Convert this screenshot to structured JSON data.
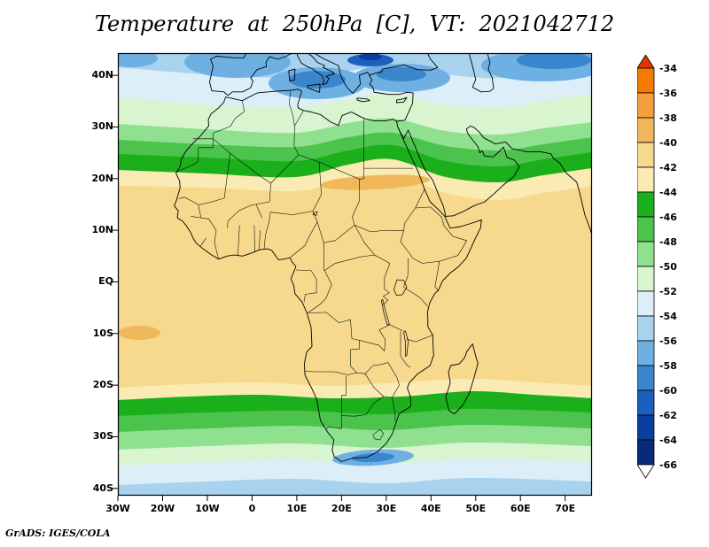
{
  "title": "Temperature at 250hPa [C], VT: 2021042712",
  "attribution": "GrADS: IGES/COLA",
  "chart_data": {
    "type": "heatmap",
    "subtype": "filled-contour-weather-map",
    "title": "Temperature at 250hPa [C], VT: 2021042712",
    "variable": "Temperature",
    "pressure_level": "250hPa",
    "units": "C",
    "valid_time": "2021042712",
    "region": "Africa, Mediterranean, Arabia and surrounding oceans",
    "x_axis": {
      "tick_labels": [
        "30W",
        "20W",
        "10W",
        "0",
        "10E",
        "20E",
        "30E",
        "40E",
        "50E",
        "60E",
        "70E"
      ],
      "tick_lons": [
        -30,
        -20,
        -10,
        0,
        10,
        20,
        30,
        40,
        50,
        60,
        70
      ],
      "lon_range": [
        -30,
        76
      ]
    },
    "y_axis": {
      "tick_labels": [
        "40N",
        "30N",
        "20N",
        "10N",
        "EQ",
        "10S",
        "20S",
        "30S",
        "40S"
      ],
      "tick_lats": [
        40,
        30,
        20,
        10,
        0,
        -10,
        -20,
        -30,
        -40
      ],
      "lat_range": [
        -41.4,
        44.3
      ]
    },
    "colorbar": {
      "tick_labels": [
        "-34",
        "-36",
        "-38",
        "-40",
        "-42",
        "-44",
        "-46",
        "-48",
        "-50",
        "-52",
        "-54",
        "-56",
        "-58",
        "-60",
        "-62",
        "-64",
        "-66"
      ],
      "cell_colors": [
        "#f57a00",
        "#f5a03c",
        "#f0b85a",
        "#f7d98d",
        "#faeab4",
        "#1caf1c",
        "#4cc34c",
        "#8fe08f",
        "#d8f5d0",
        "#dceef7",
        "#a8d2ee",
        "#6fb0e2",
        "#3a86cc",
        "#1c5fbe",
        "#0a3f9e",
        "#072a7a"
      ],
      "arrow_top_color": "#e03800",
      "arrow_bottom_color": "#ffffff",
      "contour_interval": 2
    },
    "palette": {
      "m38_40": "#f0b85a",
      "m40_42": "#f7d98d",
      "m42_44": "#faeab4",
      "m44_46": "#1caf1c",
      "m46_48": "#4cc34c",
      "m48_50": "#8fe08f",
      "m50_52": "#d8f5d0",
      "m52_54": "#dceef7",
      "m54_56": "#a8d2ee",
      "m56_58": "#6fb0e2",
      "m58_60": "#3a86cc",
      "m60_62": "#1c5fbe",
      "m62_64": "#0a3f9e",
      "m64_66": "#072a7a"
    }
  }
}
